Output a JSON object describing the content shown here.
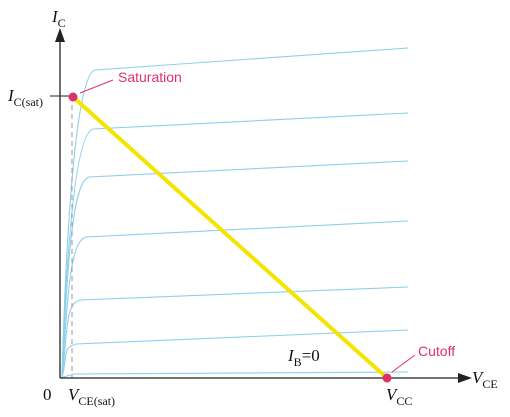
{
  "diagram": {
    "axes": {
      "y_axis": {
        "symbol": "I",
        "subscript": "C"
      },
      "x_axis": {
        "symbol": "V",
        "subscript": "CE"
      },
      "origin": "0"
    },
    "labels": {
      "ic_sat": {
        "symbol": "I",
        "subscript": "C(sat)"
      },
      "vce_sat": {
        "symbol": "V",
        "subscript": "CE(sat)"
      },
      "vcc": {
        "symbol": "V",
        "subscript": "CC"
      },
      "ib_zero": {
        "symbol": "I",
        "subscript": "B",
        "rest": "=0"
      }
    },
    "annotations": {
      "saturation": "Saturation",
      "cutoff": "Cutoff"
    },
    "colors": {
      "load_line": "#f5e400",
      "curves": "#8ecfea",
      "points": "#e0306a",
      "axes": "#222222"
    },
    "curve_count": 7
  }
}
